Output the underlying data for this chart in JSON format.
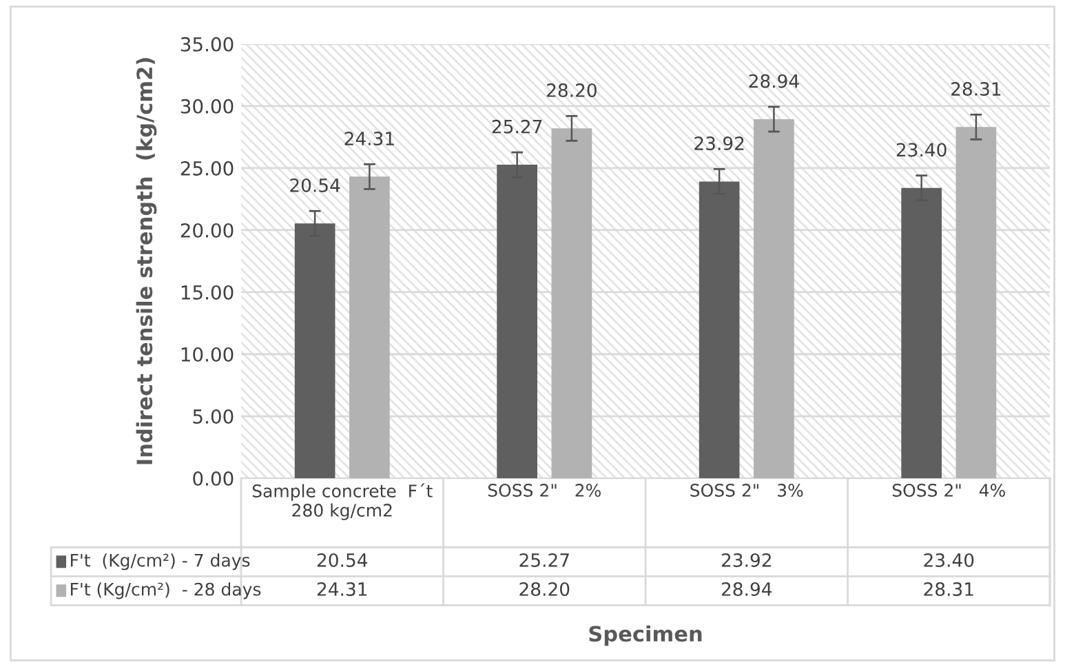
{
  "chart_data": {
    "type": "bar",
    "ylabel": "Indirect tensile strength  (kg/cm2)",
    "annotations": [
      "Specimen"
    ],
    "categories": [
      "Sample concrete  F´t\n280 kg/cm2",
      "SOSS 2\"   2%",
      "SOSS 2\"   3%",
      "SOSS 2\"   4%"
    ],
    "series": [
      {
        "name": "F't  (Kg/cm²) - 7 days",
        "color": "#5f5f5f",
        "values": [
          20.54,
          25.27,
          23.92,
          23.4
        ],
        "value_labels": [
          "20.54",
          "25.27",
          "23.92",
          "23.40"
        ],
        "errors": [
          1,
          1,
          1,
          1
        ]
      },
      {
        "name": "F't (Kg/cm²)  - 28 days",
        "color": "#b2b2b2",
        "values": [
          24.31,
          28.2,
          28.94,
          28.31
        ],
        "value_labels": [
          "24.31",
          "28.20",
          "28.94",
          "28.31"
        ],
        "errors": [
          1,
          1,
          1,
          1
        ]
      }
    ],
    "ylim": [
      0,
      35
    ],
    "yticks": [
      {
        "value": 0,
        "label": "0.00"
      },
      {
        "value": 5,
        "label": "5.00"
      },
      {
        "value": 10,
        "label": "10.00"
      },
      {
        "value": 15,
        "label": "15.00"
      },
      {
        "value": 20,
        "label": "20.00"
      },
      {
        "value": 25,
        "label": "25.00"
      },
      {
        "value": 30,
        "label": "30.00"
      },
      {
        "value": 35,
        "label": "35.00"
      }
    ],
    "grid": "y",
    "legend": "bottom"
  }
}
